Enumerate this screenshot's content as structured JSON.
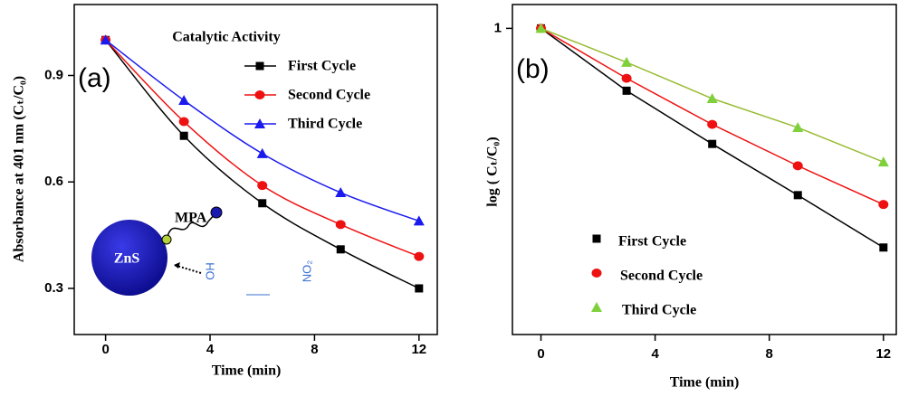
{
  "chart_data": [
    {
      "type": "line",
      "title": "Catalytic Activity",
      "x_label": "Time (min)",
      "y_label": "Absorbance at 401 nm (Cₜ/C₀)",
      "annotations": [
        "(a)",
        "MPA",
        "ZnS",
        "OH",
        "NO₂"
      ],
      "x": [
        0,
        3,
        6,
        9,
        12
      ],
      "series": [
        {
          "name": "First Cycle",
          "color": "#000000",
          "marker": "square",
          "values": [
            1.0,
            0.73,
            0.54,
            0.41,
            0.3
          ]
        },
        {
          "name": "Second Cycle",
          "color": "#ee1111",
          "marker": "circle",
          "values": [
            1.0,
            0.77,
            0.59,
            0.48,
            0.39
          ]
        },
        {
          "name": "Third Cycle",
          "color": "#1a1aee",
          "marker": "triangle",
          "values": [
            1.0,
            0.83,
            0.68,
            0.57,
            0.49
          ]
        }
      ],
      "xlim": [
        -1.2,
        12.7
      ],
      "xticks": [
        0,
        4,
        8,
        12
      ],
      "ylim": [
        0.17,
        1.1
      ],
      "yticks": [
        0.3,
        0.6,
        0.9
      ],
      "legend": "top-right",
      "smooth": true
    },
    {
      "type": "scatter-fit",
      "x_label": "Time (min)",
      "y_label": "log ( Cₜ/C₀)",
      "annotations": [
        "(b)"
      ],
      "x": [
        0,
        3,
        6,
        9,
        12
      ],
      "series": [
        {
          "name": "First Cycle",
          "color": "#000000",
          "marker": "square",
          "values": [
            1.0,
            0.71,
            0.53,
            0.4,
            0.3
          ]
        },
        {
          "name": "Second Cycle",
          "color": "#ee1111",
          "marker": "circle",
          "values": [
            1.0,
            0.76,
            0.59,
            0.47,
            0.38
          ]
        },
        {
          "name": "Third Cycle",
          "color": "#7fd13b",
          "marker": "triangle",
          "values": [
            1.0,
            0.83,
            0.68,
            0.58,
            0.48
          ]
        }
      ],
      "xlim": [
        -1.0,
        12.45
      ],
      "xticks": [
        0,
        4,
        8,
        12
      ],
      "ylim": [
        0.186,
        1.14
      ],
      "yticks": [
        1
      ],
      "log_y": true,
      "legend": "bottom-left",
      "smooth": false
    }
  ]
}
